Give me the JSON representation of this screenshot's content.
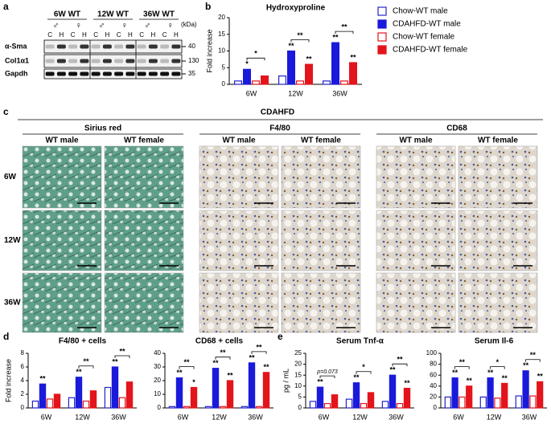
{
  "panel_labels": [
    "a",
    "b",
    "c",
    "d",
    "e"
  ],
  "blot": {
    "groups": [
      "6W WT",
      "12W WT",
      "36W WT"
    ],
    "sexes": [
      "♂",
      "♀"
    ],
    "lanes": [
      "C",
      "H"
    ],
    "unit": "(kDa)",
    "rows": [
      {
        "label": "α-Sma",
        "kda": "40"
      },
      {
        "label": "Col1α1",
        "kda": "130"
      },
      {
        "label": "Gapdh",
        "kda": "35"
      }
    ]
  },
  "histology": {
    "group": "CDAHFD",
    "stains": [
      {
        "name": "Sirius red",
        "columns": [
          "WT male",
          "WT female"
        ]
      },
      {
        "name": "F4/80",
        "columns": [
          "WT male",
          "WT female"
        ]
      },
      {
        "name": "CD68",
        "columns": [
          "WT male",
          "WT female"
        ]
      }
    ],
    "rows": [
      "6W",
      "12W",
      "36W"
    ]
  },
  "chart_data": [
    {
      "type": "bar",
      "title": "Hydroxyproline",
      "y_label": "Fold increase",
      "categories": [
        "6W",
        "12W",
        "36W"
      ],
      "ylim": [
        0,
        20
      ],
      "yticks": [
        0,
        5,
        10,
        15,
        20
      ],
      "series": [
        {
          "name": "Chow-WT male",
          "color": "#2323c8",
          "fill": "#ffffff",
          "values": [
            1,
            2.5,
            1
          ],
          "stars": [
            null,
            null,
            null
          ]
        },
        {
          "name": "CDAHFD-WT male",
          "color": "#1a1adb",
          "fill": "#1a1adb",
          "values": [
            4.5,
            10,
            12.5
          ],
          "stars": [
            "*",
            "**",
            "**"
          ]
        },
        {
          "name": "Chow-WT female",
          "color": "#e3141b",
          "fill": "#ffffff",
          "values": [
            1,
            1,
            1
          ],
          "stars": [
            null,
            null,
            null
          ]
        },
        {
          "name": "CDAHFD-WT female",
          "color": "#e3141b",
          "fill": "#e3141b",
          "values": [
            2.5,
            6,
            6.5
          ],
          "stars": [
            null,
            "**",
            "**"
          ]
        }
      ],
      "brackets": [
        {
          "category": "6W",
          "label": "*"
        },
        {
          "category": "12W",
          "label": "**"
        },
        {
          "category": "36W",
          "label": "**"
        }
      ]
    },
    {
      "type": "bar",
      "title": "F4/80 + cells",
      "y_label": "Fold increase",
      "categories": [
        "6W",
        "12W",
        "36W"
      ],
      "ylim": [
        0,
        8
      ],
      "yticks": [
        0,
        2,
        4,
        6,
        8
      ],
      "series": [
        {
          "color": "#2323c8",
          "fill": "#ffffff",
          "values": [
            1,
            1.5,
            3
          ],
          "stars": [
            null,
            null,
            null
          ]
        },
        {
          "color": "#1a1adb",
          "fill": "#1a1adb",
          "values": [
            3.5,
            4.5,
            6
          ],
          "stars": [
            "**",
            "**",
            "**"
          ]
        },
        {
          "color": "#e3141b",
          "fill": "#ffffff",
          "values": [
            1.3,
            1,
            1.5
          ],
          "stars": [
            null,
            null,
            null
          ]
        },
        {
          "color": "#e3141b",
          "fill": "#e3141b",
          "values": [
            2,
            2.5,
            3.8
          ],
          "stars": [
            null,
            null,
            null
          ]
        }
      ],
      "brackets": [
        {
          "category": "12W",
          "label": "**"
        },
        {
          "category": "36W",
          "label": "**"
        }
      ]
    },
    {
      "type": "bar",
      "title": "CD68 + cells",
      "categories": [
        "6W",
        "12W",
        "36W"
      ],
      "ylim": [
        0,
        40
      ],
      "yticks": [
        0,
        10,
        20,
        30,
        40
      ],
      "series": [
        {
          "color": "#2323c8",
          "fill": "#ffffff",
          "values": [
            1,
            1,
            1
          ],
          "stars": [
            null,
            null,
            null
          ]
        },
        {
          "color": "#1a1adb",
          "fill": "#1a1adb",
          "values": [
            22,
            29,
            33
          ],
          "stars": [
            "**",
            "**",
            "**"
          ]
        },
        {
          "color": "#e3141b",
          "fill": "#ffffff",
          "values": [
            1,
            1,
            1
          ],
          "stars": [
            null,
            null,
            null
          ]
        },
        {
          "color": "#e3141b",
          "fill": "#e3141b",
          "values": [
            15,
            20,
            26
          ],
          "stars": [
            "*",
            "**",
            "**"
          ]
        }
      ],
      "brackets": [
        {
          "category": "6W",
          "label": "**"
        },
        {
          "category": "12W",
          "label": "**"
        },
        {
          "category": "36W",
          "label": "**"
        }
      ]
    },
    {
      "type": "bar",
      "title": "Serum Tnf-α",
      "y_label": "pg / mL",
      "categories": [
        "6W",
        "12W",
        "36W"
      ],
      "ylim": [
        0,
        25
      ],
      "yticks": [
        0,
        5,
        10,
        15,
        20,
        25
      ],
      "series": [
        {
          "color": "#2323c8",
          "fill": "#ffffff",
          "values": [
            3,
            4,
            3
          ],
          "stars": [
            null,
            null,
            null
          ]
        },
        {
          "color": "#1a1adb",
          "fill": "#1a1adb",
          "values": [
            9.5,
            11.5,
            15
          ],
          "stars": [
            "**",
            "**",
            "**"
          ]
        },
        {
          "color": "#e3141b",
          "fill": "#ffffff",
          "values": [
            2,
            2,
            2
          ],
          "stars": [
            null,
            null,
            null
          ]
        },
        {
          "color": "#e3141b",
          "fill": "#e3141b",
          "values": [
            6,
            7,
            9
          ],
          "stars": [
            null,
            null,
            "**"
          ]
        }
      ],
      "brackets": [
        {
          "category": "6W",
          "label": "p=0.073"
        },
        {
          "category": "12W",
          "label": "*"
        },
        {
          "category": "36W",
          "label": "**"
        }
      ]
    },
    {
      "type": "bar",
      "title": "Serum Il-6",
      "categories": [
        "6W",
        "12W",
        "36W"
      ],
      "ylim": [
        0,
        100
      ],
      "yticks": [
        0,
        20,
        40,
        60,
        80,
        100
      ],
      "series": [
        {
          "color": "#2323c8",
          "fill": "#ffffff",
          "values": [
            20,
            20,
            22
          ],
          "stars": [
            null,
            null,
            null
          ]
        },
        {
          "color": "#1a1adb",
          "fill": "#1a1adb",
          "values": [
            55,
            55,
            68
          ],
          "stars": [
            "**",
            "**",
            "**"
          ]
        },
        {
          "color": "#e3141b",
          "fill": "#ffffff",
          "values": [
            20,
            18,
            22
          ],
          "stars": [
            null,
            null,
            null
          ]
        },
        {
          "color": "#e3141b",
          "fill": "#e3141b",
          "values": [
            40,
            45,
            48
          ],
          "stars": [
            "**",
            "**",
            "**"
          ]
        }
      ],
      "brackets": [
        {
          "category": "6W",
          "label": "**"
        },
        {
          "category": "12W",
          "label": "*"
        },
        {
          "category": "36W",
          "label": "**"
        }
      ]
    }
  ]
}
